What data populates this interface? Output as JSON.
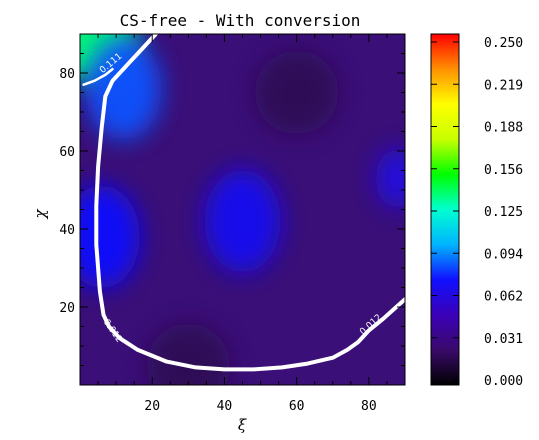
{
  "chart_data": {
    "type": "heatmap",
    "title": "CS-free - With conversion",
    "xlabel": "ξ",
    "ylabel": "χ",
    "xlim": [
      0,
      90
    ],
    "ylim": [
      0,
      90
    ],
    "x_ticks": [
      20,
      40,
      60,
      80
    ],
    "y_ticks": [
      20,
      40,
      60,
      80
    ],
    "colorbar": {
      "range": [
        0.0,
        0.25
      ],
      "ticks": [
        "0.250",
        "0.219",
        "0.188",
        "0.156",
        "0.125",
        "0.094",
        "0.062",
        "0.031",
        "0.000"
      ],
      "colormap": [
        "#000000",
        "#3a0a6a",
        "#3b00b8",
        "#1010ff",
        "#00b4ff",
        "#00ffd0",
        "#00ff00",
        "#c8ff00",
        "#ffff00",
        "#ff9000",
        "#ff0000"
      ]
    },
    "field_features": [
      {
        "kind": "peak",
        "x": 3,
        "y": 89,
        "value": 0.135,
        "note": "top-left maximum, green"
      },
      {
        "kind": "blob",
        "x": 12,
        "y": 76,
        "value": 0.085
      },
      {
        "kind": "blob",
        "x": 6,
        "y": 38,
        "value": 0.075
      },
      {
        "kind": "blob",
        "x": 45,
        "y": 42,
        "value": 0.07
      },
      {
        "kind": "blob",
        "x": 88,
        "y": 53,
        "value": 0.065
      },
      {
        "kind": "low",
        "x": 30,
        "y": 5,
        "value": 0.02
      },
      {
        "kind": "low",
        "x": 60,
        "y": 75,
        "value": 0.02
      }
    ],
    "contours": [
      {
        "label": "0.012",
        "points": [
          [
            21,
            90
          ],
          [
            17,
            86
          ],
          [
            13,
            82
          ],
          [
            9,
            78
          ],
          [
            7,
            74
          ],
          [
            6,
            66
          ],
          [
            5,
            56
          ],
          [
            4.5,
            46
          ],
          [
            4.5,
            36
          ],
          [
            5,
            30
          ],
          [
            5.5,
            24
          ],
          [
            6.5,
            18
          ],
          [
            8,
            15
          ],
          [
            11,
            12
          ],
          [
            16,
            9
          ],
          [
            24,
            6
          ],
          [
            32,
            4.5
          ],
          [
            40,
            4
          ],
          [
            48,
            4
          ],
          [
            56,
            4.5
          ],
          [
            63,
            5.5
          ],
          [
            70,
            7
          ],
          [
            74,
            9
          ],
          [
            77,
            11
          ],
          [
            80,
            14
          ],
          [
            84,
            17
          ],
          [
            87,
            19.5
          ],
          [
            90,
            22
          ]
        ]
      },
      {
        "label": "0.111",
        "points": [
          [
            1,
            77
          ],
          [
            4,
            78
          ],
          [
            7,
            79.5
          ],
          [
            9,
            81
          ]
        ]
      }
    ],
    "contour_label_positions": [
      {
        "text": "0.012",
        "x": 8.5,
        "y": 13.5,
        "angle": 55
      },
      {
        "text": "0.012",
        "x": 81,
        "y": 15,
        "angle": -42
      },
      {
        "text": "0.111",
        "x": 9,
        "y": 82,
        "angle": -40
      }
    ]
  }
}
